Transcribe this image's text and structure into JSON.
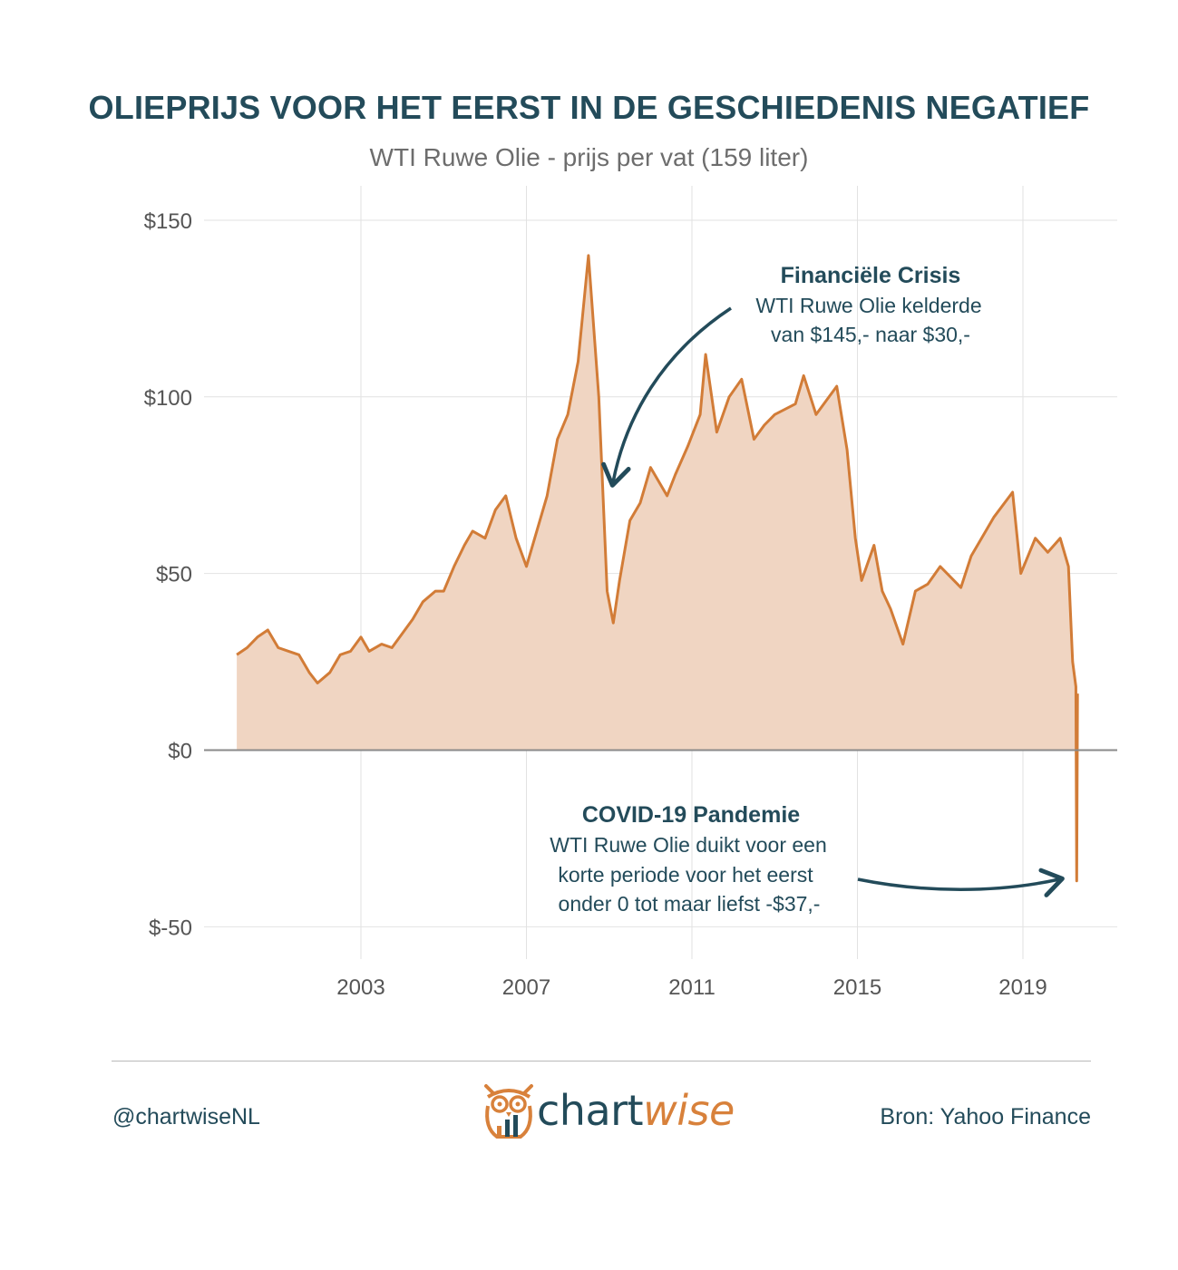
{
  "title": "OLIEPRIJS VOOR HET EERST IN DE GESCHIEDENIS NEGATIEF",
  "subtitle": "WTI Ruwe Olie - prijs per vat (159 liter)",
  "colors": {
    "title": "#234b5a",
    "line": "#d27c37",
    "area": "#f0d5c2",
    "grid": "#e2e2e2",
    "zero_line": "#8a8a8a",
    "annotation": "#234b5a"
  },
  "chart_data": {
    "type": "area",
    "title": "",
    "xlabel": "",
    "ylabel": "",
    "ylim": [
      -60,
      160
    ],
    "y_ticks": [
      150,
      100,
      50,
      0,
      -50
    ],
    "y_tick_labels": [
      "$150",
      "$100",
      "$50",
      "$0",
      "$-50"
    ],
    "x_ticks": [
      2003,
      2007,
      2011,
      2015,
      2019
    ],
    "x_tick_labels": [
      "2003",
      "2007",
      "2011",
      "2015",
      "2019"
    ],
    "grid": true,
    "series": [
      {
        "x": [
          2000.0,
          2000.25,
          2000.5,
          2000.75,
          2001.0,
          2001.25,
          2001.5,
          2001.75,
          2001.95,
          2002.25,
          2002.5,
          2002.75,
          2003.0,
          2003.2,
          2003.5,
          2003.75,
          2004.0,
          2004.25,
          2004.5,
          2004.8,
          2005.0,
          2005.25,
          2005.5,
          2005.7,
          2006.0,
          2006.25,
          2006.5,
          2006.75,
          2007.0,
          2007.25,
          2007.5,
          2007.75,
          2008.0,
          2008.25,
          2008.5,
          2008.75,
          2008.95,
          2009.1,
          2009.25,
          2009.5,
          2009.75,
          2010.0,
          2010.4,
          2010.6,
          2010.9,
          2011.2,
          2011.33,
          2011.6,
          2011.9,
          2012.2,
          2012.5,
          2012.75,
          2013.0,
          2013.5,
          2013.7,
          2014.0,
          2014.5,
          2014.75,
          2014.95,
          2015.1,
          2015.4,
          2015.6,
          2015.8,
          2016.1,
          2016.4,
          2016.7,
          2017.0,
          2017.5,
          2017.75,
          2018.0,
          2018.3,
          2018.75,
          2018.95,
          2019.3,
          2019.6,
          2019.9,
          2020.1,
          2020.2,
          2020.28,
          2020.3,
          2020.32
        ],
        "y": [
          27,
          29,
          32,
          34,
          29,
          28,
          27,
          22,
          19,
          22,
          27,
          28,
          32,
          28,
          30,
          29,
          33,
          37,
          42,
          45,
          45,
          52,
          58,
          62,
          60,
          68,
          72,
          60,
          52,
          62,
          72,
          88,
          95,
          110,
          140,
          100,
          45,
          36,
          48,
          65,
          70,
          80,
          72,
          78,
          86,
          95,
          112,
          90,
          100,
          105,
          88,
          92,
          95,
          98,
          106,
          95,
          103,
          85,
          60,
          48,
          58,
          45,
          40,
          30,
          45,
          47,
          52,
          46,
          55,
          60,
          66,
          73,
          50,
          60,
          56,
          60,
          52,
          25,
          18,
          -37,
          16
        ]
      }
    ],
    "annotations": [
      {
        "title": "Financiële Crisis",
        "lines": [
          "WTI Ruwe Olie kelderde",
          "van $145,- naar $30,-"
        ]
      },
      {
        "title": "COVID-19 Pandemie",
        "lines": [
          "WTI Ruwe Olie duikt voor een",
          "korte periode voor het eerst",
          "onder 0 tot maar liefst -$37,-"
        ]
      }
    ]
  },
  "footer": {
    "handle": "@chartwiseNL",
    "source": "Bron: Yahoo Finance",
    "logo_main": "chart",
    "logo_accent": "wise"
  }
}
